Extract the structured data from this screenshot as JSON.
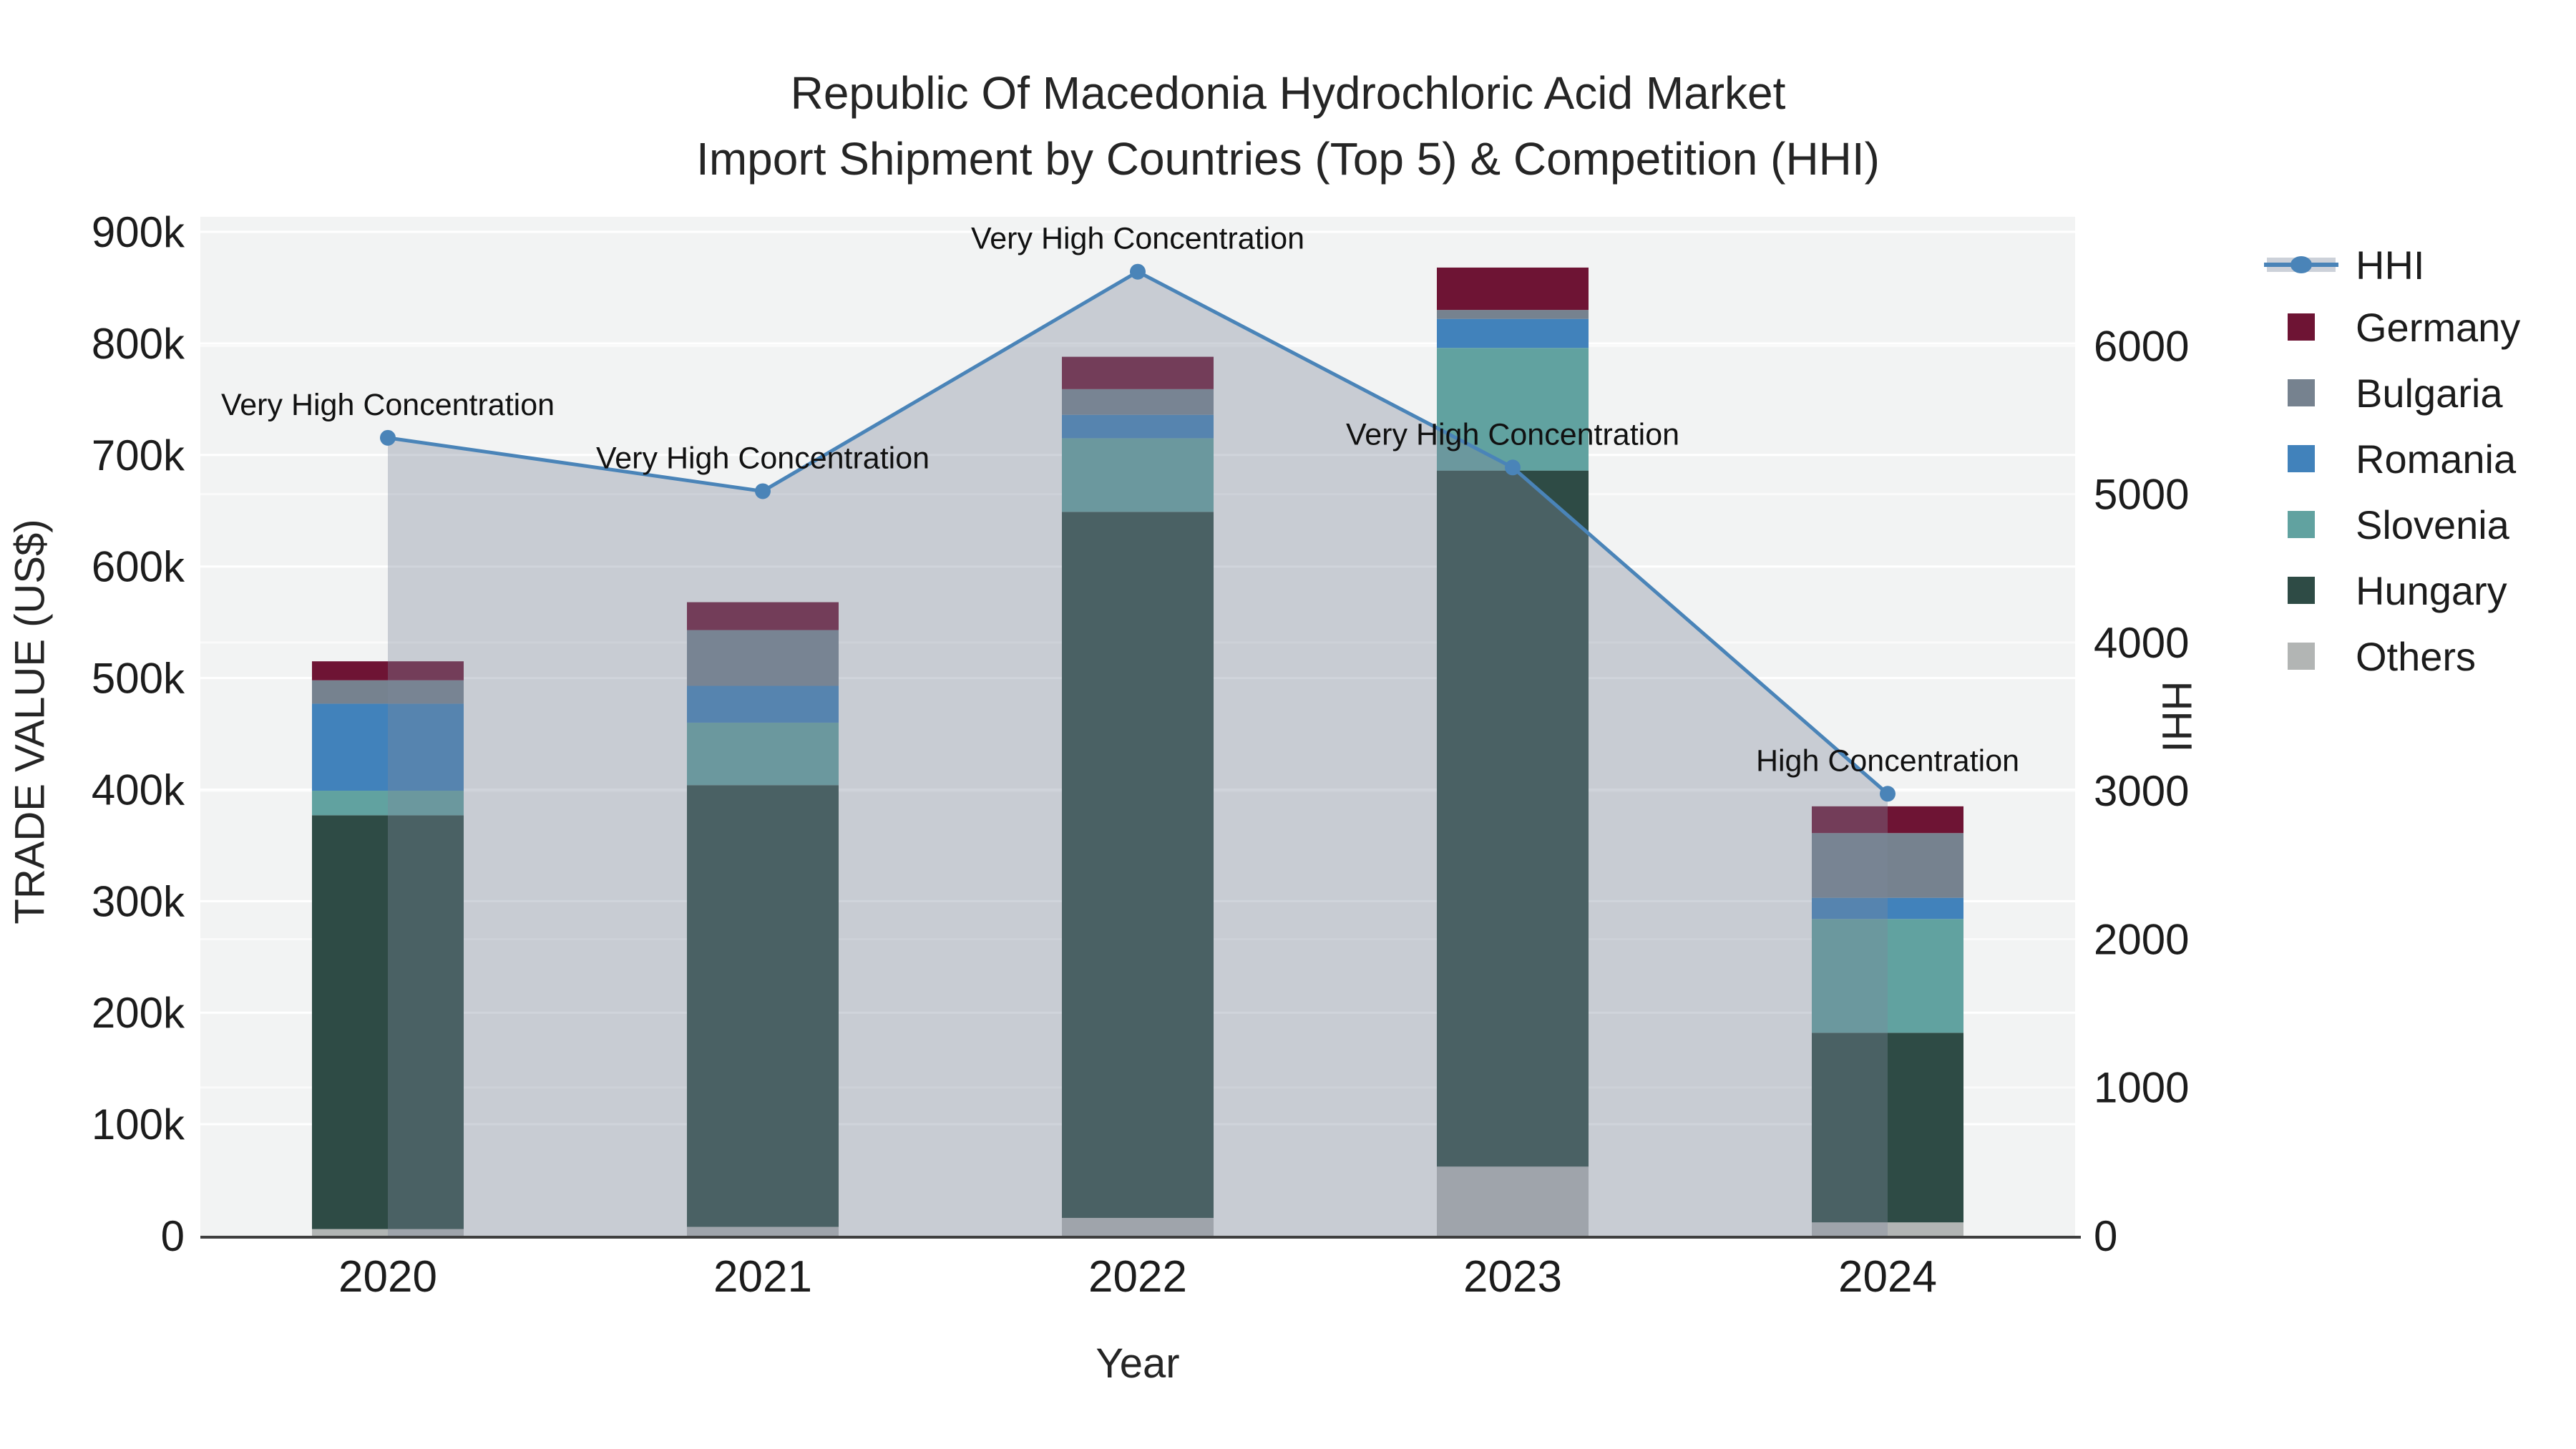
{
  "title": {
    "line1": "Republic Of Macedonia Hydrochloric Acid Market",
    "line2": "Import Shipment by Countries (Top 5) & Competition (HHI)"
  },
  "axes": {
    "x": {
      "title": "Year",
      "categories": [
        "2020",
        "2021",
        "2022",
        "2023",
        "2024"
      ]
    },
    "y_left": {
      "title": "TRADE VALUE (US$)",
      "tick_labels": [
        "0",
        "100k",
        "200k",
        "300k",
        "400k",
        "500k",
        "600k",
        "700k",
        "800k",
        "900k"
      ]
    },
    "y_right": {
      "title": "HHI",
      "tick_labels": [
        "0",
        "1000",
        "2000",
        "3000",
        "4000",
        "5000",
        "6000"
      ]
    }
  },
  "legend": {
    "items": [
      {
        "label": "HHI",
        "type": "line",
        "color": "#4a84b8",
        "band_color": "#ccd1d9"
      },
      {
        "label": "Germany",
        "type": "square",
        "color": "#6e1434"
      },
      {
        "label": "Bulgaria",
        "type": "square",
        "color": "#76828f"
      },
      {
        "label": "Romania",
        "type": "square",
        "color": "#4182bb"
      },
      {
        "label": "Slovenia",
        "type": "square",
        "color": "#61a2a0"
      },
      {
        "label": "Hungary",
        "type": "square",
        "color": "#2e4b45"
      },
      {
        "label": "Others",
        "type": "square",
        "color": "#b2b5b4"
      }
    ]
  },
  "chart_data": {
    "type": "combo_stacked_bar_line",
    "categories": [
      "2020",
      "2021",
      "2022",
      "2023",
      "2024"
    ],
    "bar_unit": "US$ thousands",
    "series": [
      {
        "name": "Germany",
        "color": "#6e1434",
        "values_k": [
          17,
          25,
          29,
          38,
          24
        ]
      },
      {
        "name": "Bulgaria",
        "color": "#76828f",
        "values_k": [
          21,
          50,
          23,
          8,
          58
        ]
      },
      {
        "name": "Romania",
        "color": "#4182bb",
        "values_k": [
          78,
          33,
          21,
          26,
          19
        ]
      },
      {
        "name": "Slovenia",
        "color": "#61a2a0",
        "values_k": [
          22,
          56,
          66,
          110,
          102
        ]
      },
      {
        "name": "Hungary",
        "color": "#2e4b45",
        "values_k": [
          371,
          396,
          633,
          624,
          170
        ]
      },
      {
        "name": "Others",
        "color": "#b2b5b4",
        "values_k": [
          6,
          8,
          16,
          62,
          12
        ]
      }
    ],
    "stack_order_bottom_up": [
      "Others",
      "Hungary",
      "Slovenia",
      "Romania",
      "Bulgaria",
      "Germany"
    ],
    "hhi": {
      "name": "HHI",
      "color": "#4a84b8",
      "area_fill": "rgba(125,136,155,0.36)",
      "values": [
        5380,
        5020,
        6500,
        5180,
        2980
      ],
      "point_labels": [
        "Very High Concentration",
        "Very High Concentration",
        "Very High Concentration",
        "Very High Concentration",
        "High Concentration"
      ]
    },
    "xlabel": "Year",
    "ylabel_left": "TRADE VALUE (US$)",
    "ylabel_right": "HHI",
    "ylim_left_k": [
      0,
      913.5
    ],
    "ylim_right": [
      0,
      6870
    ],
    "grid": true,
    "legend_position": "right"
  },
  "colors": {
    "figure_bg": "#ffffff",
    "plot_bg": "#f2f3f3",
    "grid": "#ffffff",
    "axis_line": "#3f3f3f",
    "text": "#1c1c1c",
    "annotation_text": "#111111"
  }
}
